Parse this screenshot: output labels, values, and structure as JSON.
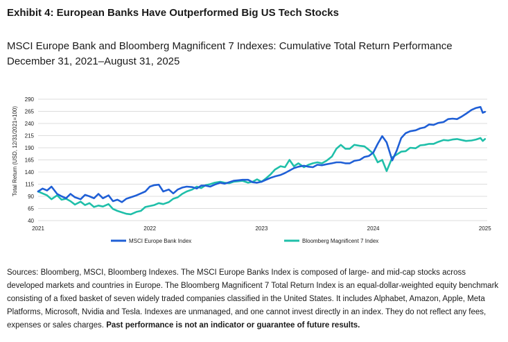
{
  "exhibit_title": "Exhibit 4: European Banks Have Outperformed Big US Tech Stocks",
  "subtitle_line1": "MSCI Europe Bank and Bloomberg Magnificent 7 Indexes: Cumulative Total Return Performance",
  "subtitle_line2": "December 31, 2021–August 31, 2025",
  "footnote_text": "Sources: Bloomberg, MSCI, Bloomberg Indexes. The MSCI Europe Banks Index is composed of large- and mid-cap stocks across developed markets and countries in Europe. The Bloomberg Magnificent 7 Total Return Index is an equal-dollar-weighted equity benchmark consisting of a fixed basket of seven widely traded companies classified in the United States. It includes Alphabet, Amazon, Apple, Meta Platforms, Microsoft, Nvidia and Tesla. Indexes are unmanaged, and one cannot invest directly in an index. They do not reflect any fees, expenses or sales charges. ",
  "footnote_bold": "Past performance is not an indicator or guarantee of future results.",
  "colors": {
    "europe_bank": "#1f5fd6",
    "mag7": "#1fbfa9",
    "grid": "#dcdcdc",
    "text": "#1a1a1a"
  },
  "chart_data": {
    "type": "line",
    "ylabel": "Total Return (USD, 12/31/2021=100)",
    "ylim": [
      40,
      290
    ],
    "yticks": [
      40,
      65,
      90,
      115,
      140,
      165,
      190,
      215,
      240,
      265,
      290
    ],
    "xlim": [
      2021,
      2025.02
    ],
    "xticks": [
      {
        "value": 2021,
        "label": "2021"
      },
      {
        "value": 2022,
        "label": "2022"
      },
      {
        "value": 2023,
        "label": "2023"
      },
      {
        "value": 2024,
        "label": "2024"
      },
      {
        "value": 2025,
        "label": "2025"
      }
    ],
    "grid": true,
    "legend": "bottom",
    "series": [
      {
        "name": "MSCI Europe Bank Index",
        "color": "#1f5fd6",
        "x": [
          2021.0,
          2021.04,
          2021.08,
          2021.12,
          2021.17,
          2021.21,
          2021.25,
          2021.29,
          2021.33,
          2021.38,
          2021.42,
          2021.46,
          2021.5,
          2021.54,
          2021.58,
          2021.63,
          2021.67,
          2021.71,
          2021.75,
          2021.79,
          2021.83,
          2021.88,
          2021.92,
          2021.96,
          2022.0,
          2022.04,
          2022.08,
          2022.12,
          2022.17,
          2022.21,
          2022.25,
          2022.29,
          2022.33,
          2022.38,
          2022.42,
          2022.46,
          2022.5,
          2022.54,
          2022.58,
          2022.63,
          2022.67,
          2022.71,
          2022.75,
          2022.79,
          2022.83,
          2022.88,
          2022.92,
          2022.96,
          2023.0,
          2023.04,
          2023.08,
          2023.12,
          2023.17,
          2023.21,
          2023.25,
          2023.29,
          2023.33,
          2023.38,
          2023.42,
          2023.46,
          2023.5,
          2023.54,
          2023.58,
          2023.63,
          2023.67,
          2023.71,
          2023.75,
          2023.79,
          2023.83,
          2023.88,
          2023.92,
          2023.96,
          2024.0,
          2024.04,
          2024.08,
          2024.12,
          2024.17,
          2024.21,
          2024.25,
          2024.29,
          2024.33,
          2024.38,
          2024.42,
          2024.46,
          2024.5,
          2024.54,
          2024.58,
          2024.63,
          2024.67,
          2024.71,
          2024.75,
          2024.79,
          2024.83,
          2024.88,
          2024.92,
          2024.96,
          2024.98,
          2025.0
        ],
        "values": [
          100,
          106,
          102,
          110,
          95,
          90,
          86,
          95,
          88,
          84,
          93,
          90,
          86,
          95,
          86,
          92,
          80,
          83,
          78,
          85,
          88,
          92,
          96,
          100,
          110,
          113,
          114,
          100,
          104,
          96,
          104,
          108,
          110,
          109,
          106,
          112,
          112,
          110,
          114,
          118,
          116,
          119,
          122,
          123,
          124,
          124,
          119,
          118,
          120,
          124,
          128,
          131,
          134,
          138,
          143,
          148,
          151,
          153,
          151,
          150,
          155,
          154,
          156,
          158,
          160,
          160,
          158,
          158,
          163,
          165,
          171,
          173,
          180,
          198,
          214,
          201,
          164,
          184,
          210,
          220,
          224,
          226,
          230,
          232,
          238,
          237,
          241,
          243,
          249,
          250,
          249,
          254,
          260,
          268,
          272,
          274,
          262,
          264
        ]
      },
      {
        "name": "Bloomberg Magnificent 7 Index",
        "color": "#1fbfa9",
        "x": [
          2021.0,
          2021.04,
          2021.08,
          2021.12,
          2021.17,
          2021.21,
          2021.25,
          2021.29,
          2021.33,
          2021.38,
          2021.42,
          2021.46,
          2021.5,
          2021.54,
          2021.58,
          2021.63,
          2021.67,
          2021.71,
          2021.75,
          2021.79,
          2021.83,
          2021.88,
          2021.92,
          2021.96,
          2022.0,
          2022.04,
          2022.08,
          2022.12,
          2022.17,
          2022.21,
          2022.25,
          2022.29,
          2022.33,
          2022.38,
          2022.42,
          2022.46,
          2022.5,
          2022.54,
          2022.58,
          2022.63,
          2022.67,
          2022.71,
          2022.75,
          2022.79,
          2022.83,
          2022.88,
          2022.92,
          2022.96,
          2023.0,
          2023.04,
          2023.08,
          2023.12,
          2023.17,
          2023.21,
          2023.25,
          2023.29,
          2023.33,
          2023.38,
          2023.42,
          2023.46,
          2023.5,
          2023.54,
          2023.58,
          2023.63,
          2023.67,
          2023.71,
          2023.75,
          2023.79,
          2023.83,
          2023.88,
          2023.92,
          2023.96,
          2024.0,
          2024.04,
          2024.08,
          2024.12,
          2024.17,
          2024.21,
          2024.25,
          2024.29,
          2024.33,
          2024.38,
          2024.42,
          2024.46,
          2024.5,
          2024.54,
          2024.58,
          2024.63,
          2024.67,
          2024.71,
          2024.75,
          2024.79,
          2024.83,
          2024.88,
          2024.92,
          2024.96,
          2024.98,
          2025.0
        ],
        "values": [
          100,
          96,
          92,
          84,
          92,
          83,
          85,
          80,
          73,
          79,
          72,
          76,
          68,
          71,
          69,
          74,
          64,
          60,
          57,
          54,
          53,
          58,
          60,
          68,
          70,
          72,
          76,
          74,
          78,
          85,
          88,
          95,
          100,
          104,
          110,
          107,
          113,
          115,
          118,
          120,
          118,
          117,
          120,
          121,
          122,
          118,
          120,
          125,
          120,
          127,
          135,
          145,
          152,
          150,
          165,
          152,
          158,
          150,
          155,
          158,
          160,
          158,
          163,
          172,
          188,
          196,
          188,
          188,
          196,
          194,
          193,
          186,
          178,
          160,
          165,
          142,
          170,
          176,
          182,
          183,
          190,
          189,
          195,
          196,
          198,
          198,
          202,
          206,
          205,
          207,
          208,
          206,
          204,
          205,
          207,
          210,
          204,
          208
        ]
      }
    ]
  }
}
